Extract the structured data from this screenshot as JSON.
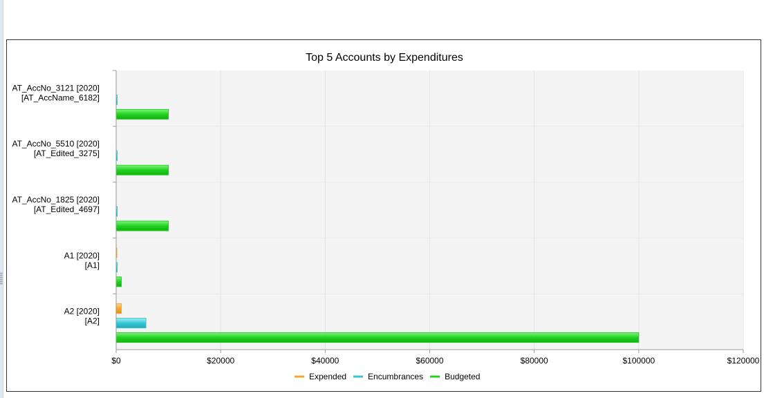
{
  "chart_data": {
    "type": "bar",
    "orientation": "horizontal",
    "title": "Top 5 Accounts by Expenditures",
    "xlabel": "",
    "ylabel": "",
    "xlim": [
      0,
      120000
    ],
    "x_ticks": [
      0,
      20000,
      40000,
      60000,
      80000,
      100000,
      120000
    ],
    "x_tick_labels": [
      "$0",
      "$20000",
      "$40000",
      "$60000",
      "$80000",
      "$100000",
      "$120000"
    ],
    "categories": [
      [
        "AT_AccNo_3121 [2020]",
        "[AT_AccName_6182]"
      ],
      [
        "AT_AccNo_5510 [2020]",
        "[AT_Edited_3275]"
      ],
      [
        "AT_AccNo_1825 [2020]",
        "[AT_Edited_4697]"
      ],
      [
        "A1 [2020]",
        "[A1]"
      ],
      [
        "A2 [2020]",
        "[A2]"
      ]
    ],
    "series": [
      {
        "name": "Expended",
        "color": "#f7a531",
        "values": [
          0,
          0,
          0,
          100,
          1000
        ]
      },
      {
        "name": "Encumbrances",
        "color": "#36c6d3",
        "values": [
          200,
          200,
          200,
          200,
          5700
        ]
      },
      {
        "name": "Budgeted",
        "color": "#21d11f",
        "values": [
          10000,
          10000,
          10000,
          1000,
          100000
        ]
      }
    ],
    "grid": true,
    "legend_position": "bottom"
  }
}
